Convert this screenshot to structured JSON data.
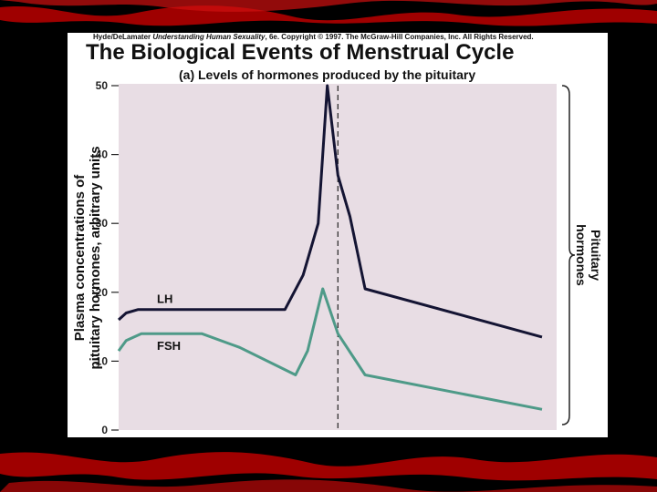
{
  "header": {
    "copyright_prefix": "Hyde/DeLamater",
    "copyright_book": "Understanding Human Sexuality",
    "copyright_suffix": ", 6e. Copyright © 1997. The McGraw-Hill Companies, Inc. All Rights Reserved.",
    "title": "The Biological Events of Menstrual Cycle",
    "subtitle": "(a) Levels of hormones produced by the pituitary"
  },
  "bracket_label_line1": "Pituitary",
  "bracket_label_line2": "hormones",
  "colors": {
    "plot_bg": "#e8dde4",
    "lh": "#141433",
    "fsh": "#4e9a88",
    "border_red": "#b00000"
  },
  "chart_data": {
    "type": "line",
    "ylabel_line1": "Plasma concentrations of",
    "ylabel_line2": "pituitary hormones, arbitrary units",
    "xlabel": "",
    "ylim": [
      0,
      50
    ],
    "yticks": [
      0,
      10,
      20,
      30,
      40,
      50
    ],
    "ovulation_marker_x": 14.5,
    "xlim": [
      0,
      28
    ],
    "series": [
      {
        "name": "LH",
        "x": [
          0,
          0.5,
          1.3,
          2.5,
          11,
          12.2,
          13.2,
          13.8,
          14.5,
          15.3,
          16.3,
          28
        ],
        "y": [
          16,
          17,
          17.5,
          17.5,
          17.5,
          22.5,
          30,
          50,
          37,
          31,
          20.5,
          13.5
        ]
      },
      {
        "name": "FSH",
        "x": [
          0,
          0.5,
          1.5,
          2.5,
          5.5,
          8,
          11.7,
          12.5,
          13.5,
          14.5,
          16.3,
          28
        ],
        "y": [
          11.5,
          13,
          14,
          14,
          14,
          12,
          8,
          11.5,
          20.5,
          14,
          8,
          3
        ]
      }
    ]
  }
}
